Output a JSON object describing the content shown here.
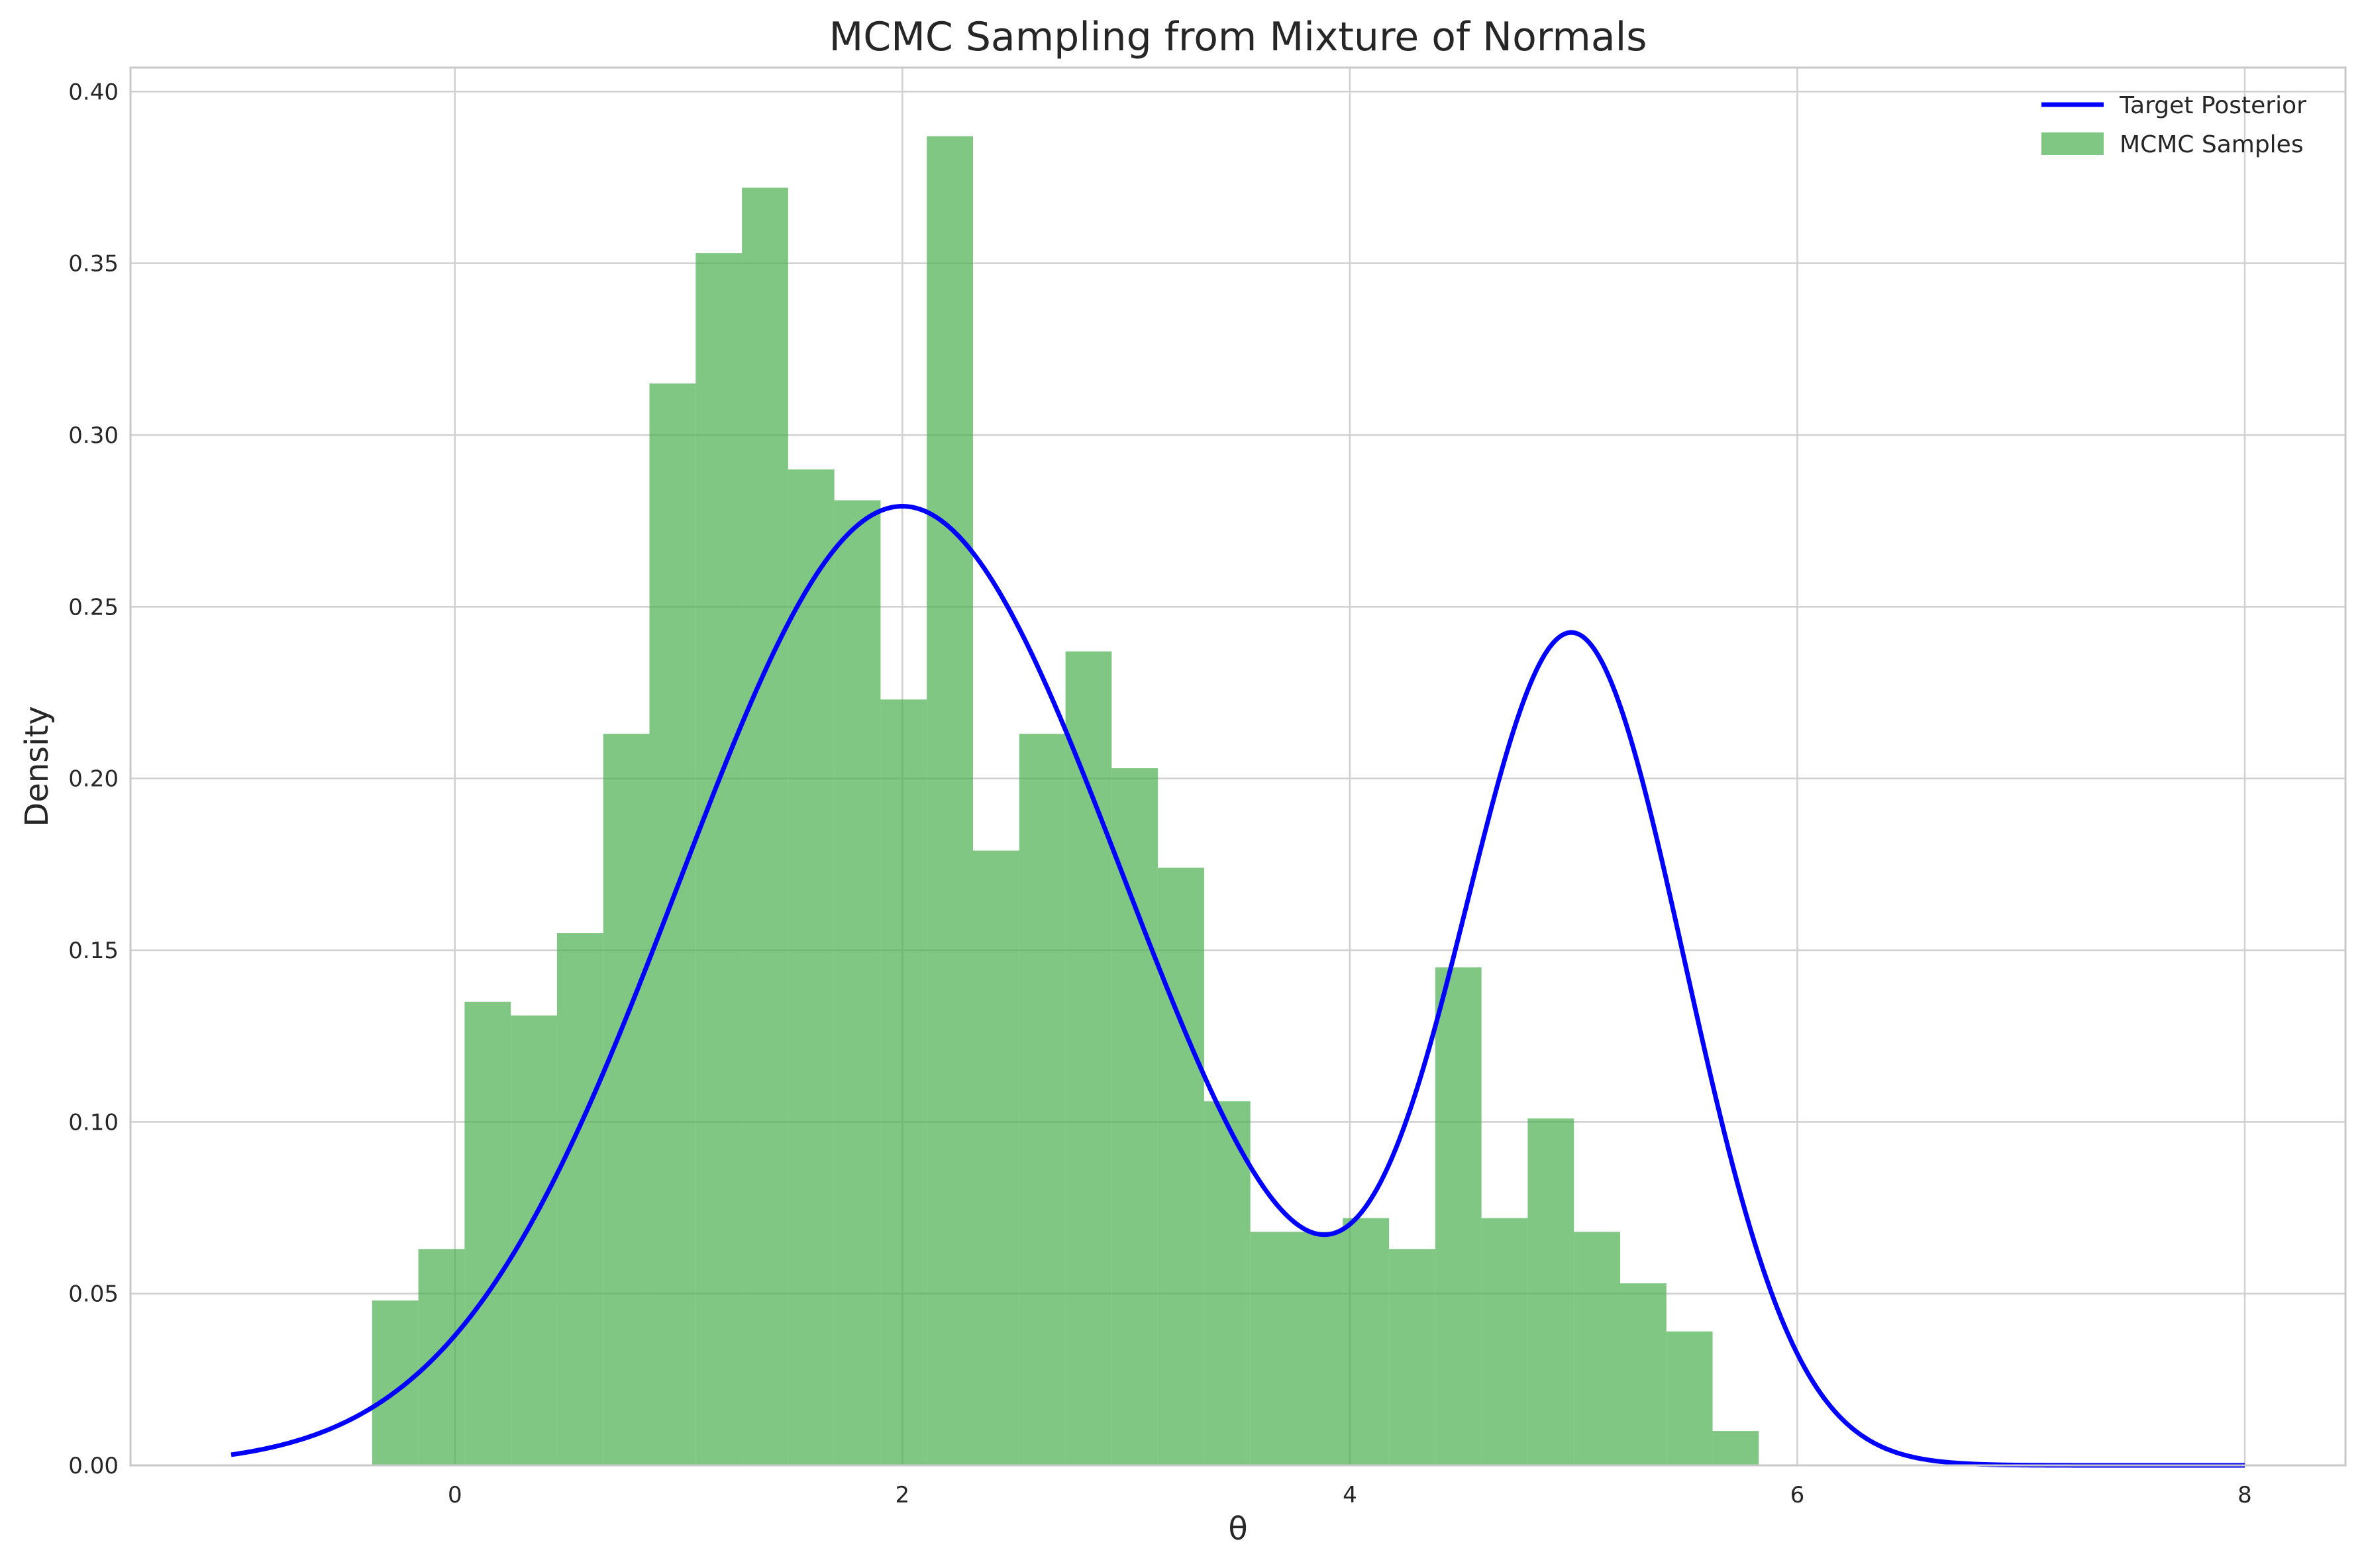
{
  "chart_data": {
    "type": "histogram",
    "title": "MCMC Sampling from Mixture of Normals",
    "xlabel": "θ",
    "ylabel": "Density",
    "xlim": [
      -1.45,
      8.45
    ],
    "ylim": [
      0,
      0.407
    ],
    "x_ticks": [
      0,
      2,
      4,
      6,
      8
    ],
    "y_ticks": [
      0.0,
      0.05,
      0.1,
      0.15,
      0.2,
      0.25,
      0.3,
      0.35,
      0.4
    ],
    "grid": true,
    "legend_position": "top-right",
    "histogram": {
      "name": "MCMC Samples",
      "color": "#4CAF50",
      "opacity": 0.7,
      "bin_start": -0.37,
      "bin_width": 0.2066,
      "values": [
        0.048,
        0.063,
        0.135,
        0.131,
        0.155,
        0.213,
        0.315,
        0.353,
        0.372,
        0.29,
        0.281,
        0.223,
        0.387,
        0.179,
        0.213,
        0.237,
        0.203,
        0.174,
        0.106,
        0.068,
        0.068,
        0.072,
        0.063,
        0.145,
        0.072,
        0.101,
        0.068,
        0.053,
        0.039,
        0.01
      ]
    },
    "curve": {
      "name": "Target Posterior",
      "color": "#0000FF",
      "components": [
        {
          "weight": 0.7,
          "mean": 2.0,
          "sd": 1.0
        },
        {
          "weight": 0.3,
          "mean": 5.0,
          "sd": 0.5
        }
      ],
      "x_range": [
        -1,
        8
      ]
    }
  }
}
